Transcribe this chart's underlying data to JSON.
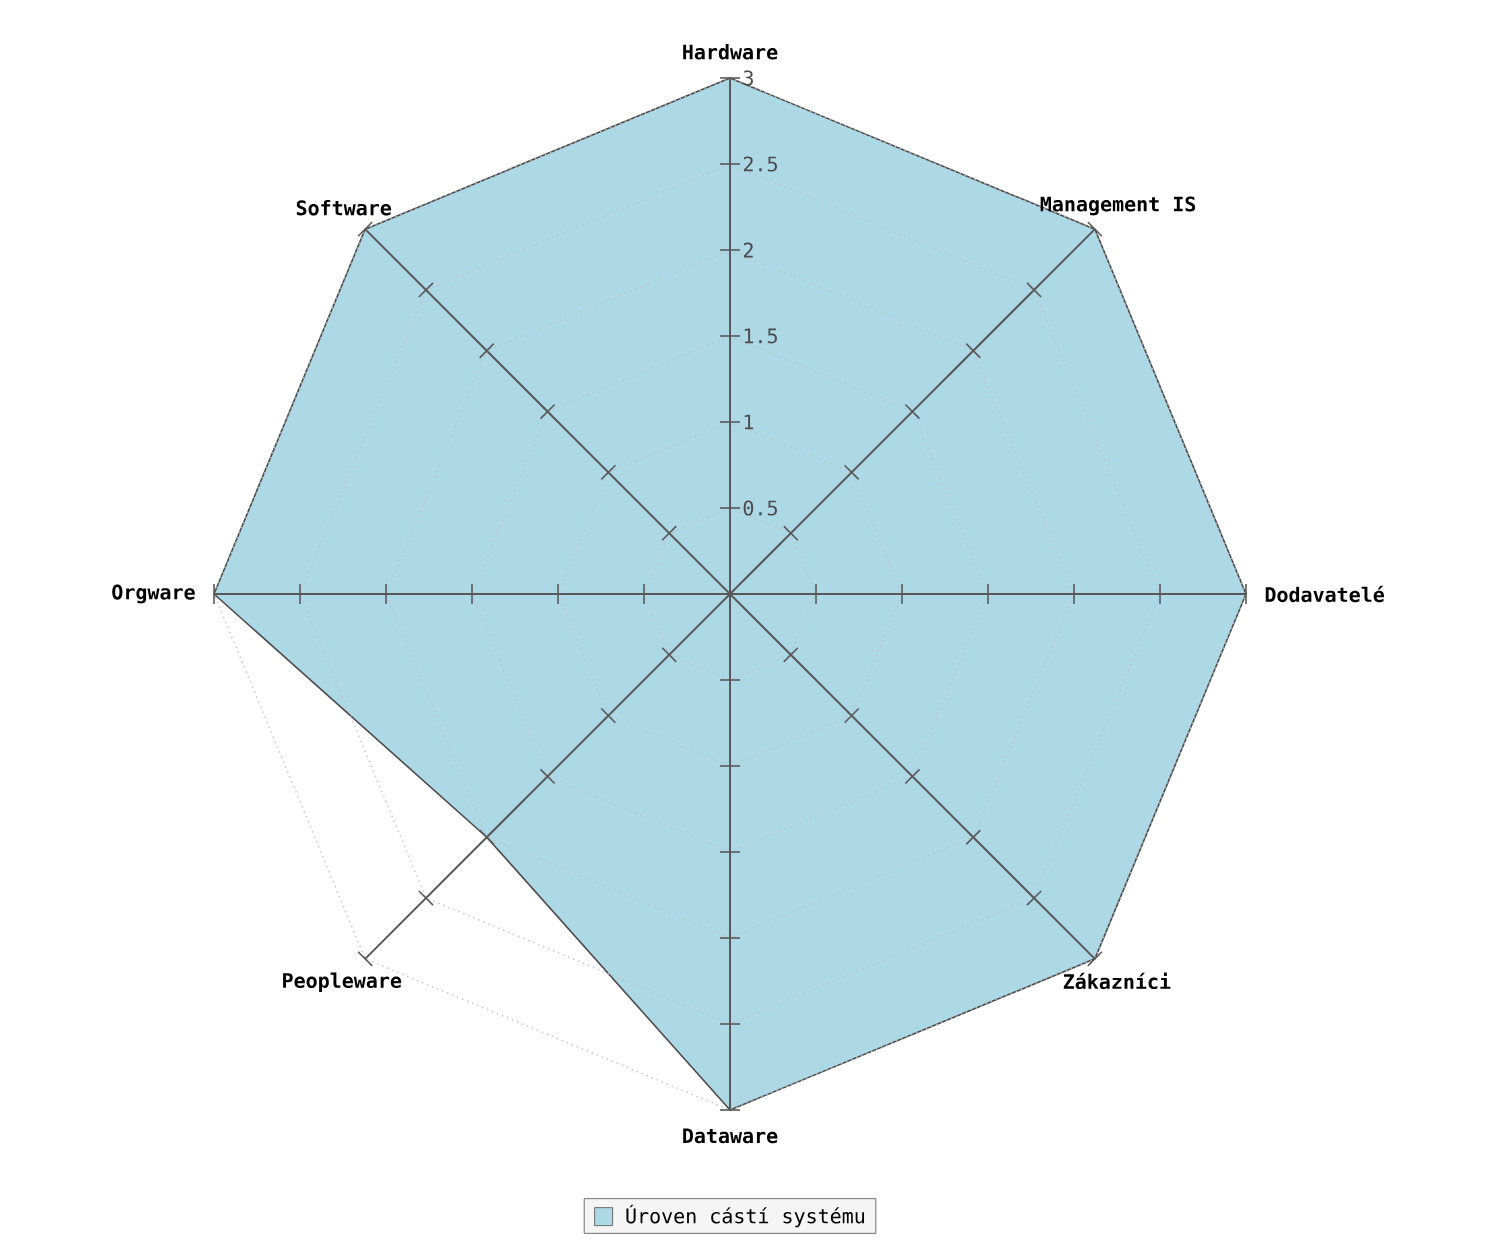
{
  "chart_data": {
    "type": "radar",
    "categories": [
      "Hardware",
      "Management IS",
      "Dodavatelé",
      "Zákazníci",
      "Dataware",
      "Peopleware",
      "Orgware",
      "Software"
    ],
    "series": [
      {
        "name": "Úroven cástí systému",
        "color": "#add8e6",
        "values": [
          3,
          3,
          3,
          3,
          3,
          2,
          3,
          3
        ]
      }
    ],
    "ylim": [
      0,
      3
    ],
    "yticks": [
      0.5,
      1,
      1.5,
      2,
      2.5,
      3
    ],
    "grid": true,
    "legend": "bottom"
  }
}
